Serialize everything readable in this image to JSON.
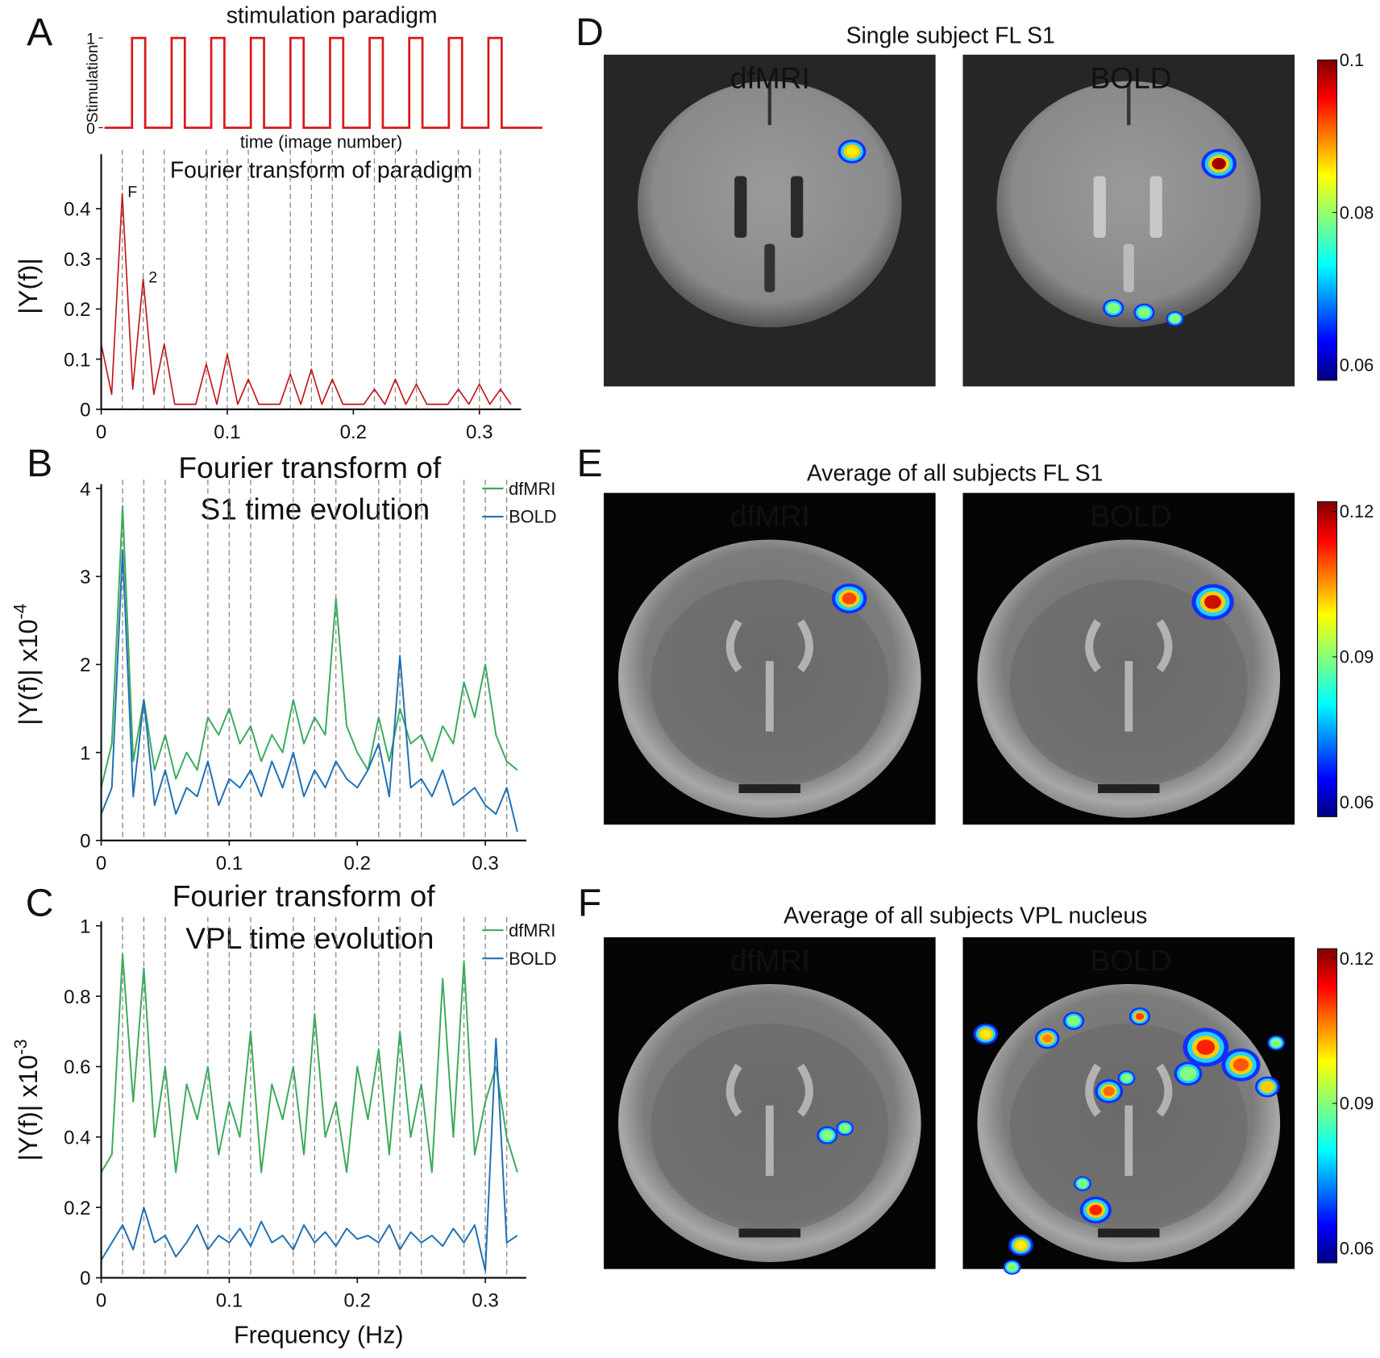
{
  "chart_data": [
    {
      "type": "step",
      "panel": "A",
      "title": "stimulation paradigm",
      "xlabel": "time (image number)",
      "ylabel": "Stimulation",
      "values": [
        0,
        0,
        1,
        0,
        0,
        1,
        0,
        0,
        1,
        0,
        0,
        1,
        0,
        0,
        1,
        0,
        0,
        1,
        0,
        0,
        1,
        0,
        0,
        1,
        0,
        0,
        1,
        0,
        0,
        1,
        0,
        0,
        0
      ],
      "color": "#d7191c",
      "ylim": [
        0,
        1
      ],
      "yticks": [
        0,
        1
      ]
    },
    {
      "type": "line",
      "title": "Fourier transform of paradigm",
      "ylabel": "|Y(f)|",
      "x": [
        0,
        0.0083,
        0.0167,
        0.025,
        0.0333,
        0.0417,
        0.05,
        0.0583,
        0.0667,
        0.075,
        0.0833,
        0.0917,
        0.1,
        0.1083,
        0.1167,
        0.125,
        0.1333,
        0.1417,
        0.15,
        0.1583,
        0.1667,
        0.175,
        0.1833,
        0.1917,
        0.2,
        0.2083,
        0.2167,
        0.225,
        0.2333,
        0.2417,
        0.25,
        0.2583,
        0.2667,
        0.275,
        0.2833,
        0.2917,
        0.3,
        0.3083,
        0.3167,
        0.325
      ],
      "values": [
        0.13,
        0.03,
        0.43,
        0.04,
        0.26,
        0.03,
        0.13,
        0.01,
        0.01,
        0.01,
        0.09,
        0.01,
        0.11,
        0.01,
        0.06,
        0.01,
        0.01,
        0.01,
        0.07,
        0.01,
        0.08,
        0.01,
        0.06,
        0.01,
        0.01,
        0.01,
        0.04,
        0.01,
        0.06,
        0.01,
        0.05,
        0.01,
        0.01,
        0.01,
        0.04,
        0.01,
        0.05,
        0.01,
        0.04,
        0.01
      ],
      "color": "#c0141a",
      "xlim": [
        0,
        0.333
      ],
      "ylim": [
        0,
        0.5
      ],
      "xticks": [
        0,
        0.1,
        0.2,
        0.3
      ],
      "yticks": [
        0,
        0.1,
        0.2,
        0.3,
        0.4
      ],
      "vlines": [
        0.0167,
        0.0333,
        0.05,
        0.0833,
        0.1,
        0.1167,
        0.15,
        0.1667,
        0.1833,
        0.2167,
        0.2333,
        0.25,
        0.2833,
        0.3,
        0.3167
      ],
      "annotations": [
        {
          "text": "F",
          "x": 0.0167,
          "y": 0.43
        },
        {
          "text": "2",
          "x": 0.0333,
          "y": 0.26
        }
      ]
    },
    {
      "type": "line",
      "panel": "B",
      "title": [
        "Fourier transform of",
        "S1 time evolution"
      ],
      "ylabel": "|Y(f)| x10",
      "ylabel_exponent": "-4",
      "x": [
        0,
        0.0083,
        0.0167,
        0.025,
        0.0333,
        0.0417,
        0.05,
        0.0583,
        0.0667,
        0.075,
        0.0833,
        0.0917,
        0.1,
        0.1083,
        0.1167,
        0.125,
        0.1333,
        0.1417,
        0.15,
        0.1583,
        0.1667,
        0.175,
        0.1833,
        0.1917,
        0.2,
        0.2083,
        0.2167,
        0.225,
        0.2333,
        0.2417,
        0.25,
        0.2583,
        0.2667,
        0.275,
        0.2833,
        0.2917,
        0.3,
        0.3083,
        0.3167,
        0.325
      ],
      "series": [
        {
          "name": "dfMRI",
          "color": "#3aaa5c",
          "values": [
            0.6,
            1.1,
            3.8,
            0.9,
            1.6,
            0.8,
            1.2,
            0.7,
            1.0,
            0.8,
            1.4,
            1.2,
            1.5,
            1.1,
            1.3,
            0.9,
            1.2,
            1.0,
            1.6,
            1.1,
            1.4,
            1.2,
            2.75,
            1.3,
            1.0,
            0.8,
            1.4,
            0.9,
            1.5,
            1.1,
            1.2,
            0.9,
            1.3,
            1.1,
            1.8,
            1.4,
            2.0,
            1.2,
            0.9,
            0.8
          ]
        },
        {
          "name": "BOLD",
          "color": "#1f6fb4",
          "values": [
            0.3,
            0.6,
            3.3,
            0.5,
            1.6,
            0.4,
            0.8,
            0.3,
            0.6,
            0.5,
            0.9,
            0.4,
            0.7,
            0.6,
            0.8,
            0.5,
            0.9,
            0.6,
            1.0,
            0.5,
            0.8,
            0.6,
            0.9,
            0.7,
            0.6,
            0.8,
            1.1,
            0.5,
            2.1,
            0.6,
            0.7,
            0.5,
            0.8,
            0.4,
            0.5,
            0.6,
            0.4,
            0.3,
            0.6,
            0.1
          ]
        }
      ],
      "xlim": [
        0,
        0.332
      ],
      "ylim": [
        0,
        4
      ],
      "xticks": [
        0,
        0.1,
        0.2,
        0.3
      ],
      "yticks": [
        0,
        1,
        2,
        3,
        4
      ],
      "vlines": [
        0.0167,
        0.0333,
        0.05,
        0.0833,
        0.1,
        0.1167,
        0.15,
        0.1667,
        0.1833,
        0.2167,
        0.2333,
        0.25,
        0.2833,
        0.3,
        0.3167
      ]
    },
    {
      "type": "line",
      "panel": "C",
      "title": [
        "Fourier transform of",
        "VPL time evolution"
      ],
      "xlabel": "Frequency (Hz)",
      "ylabel": "|Y(f)| x10",
      "ylabel_exponent": "-3",
      "x": [
        0,
        0.0083,
        0.0167,
        0.025,
        0.0333,
        0.0417,
        0.05,
        0.0583,
        0.0667,
        0.075,
        0.0833,
        0.0917,
        0.1,
        0.1083,
        0.1167,
        0.125,
        0.1333,
        0.1417,
        0.15,
        0.1583,
        0.1667,
        0.175,
        0.1833,
        0.1917,
        0.2,
        0.2083,
        0.2167,
        0.225,
        0.2333,
        0.2417,
        0.25,
        0.2583,
        0.2667,
        0.275,
        0.2833,
        0.2917,
        0.3,
        0.3083,
        0.3167,
        0.325
      ],
      "series": [
        {
          "name": "dfMRI",
          "color": "#3aaa5c",
          "values": [
            0.3,
            0.35,
            0.92,
            0.5,
            0.88,
            0.4,
            0.6,
            0.3,
            0.55,
            0.45,
            0.6,
            0.35,
            0.5,
            0.4,
            0.7,
            0.3,
            0.55,
            0.45,
            0.6,
            0.35,
            0.75,
            0.4,
            0.5,
            0.3,
            0.6,
            0.45,
            0.65,
            0.35,
            0.7,
            0.4,
            0.55,
            0.3,
            0.85,
            0.4,
            0.9,
            0.35,
            0.5,
            0.6,
            0.4,
            0.3
          ]
        },
        {
          "name": "BOLD",
          "color": "#1f6fb4",
          "values": [
            0.05,
            0.1,
            0.15,
            0.08,
            0.2,
            0.1,
            0.12,
            0.06,
            0.1,
            0.15,
            0.08,
            0.12,
            0.1,
            0.14,
            0.09,
            0.16,
            0.1,
            0.12,
            0.08,
            0.15,
            0.1,
            0.13,
            0.09,
            0.14,
            0.11,
            0.12,
            0.1,
            0.15,
            0.08,
            0.13,
            0.1,
            0.12,
            0.09,
            0.14,
            0.1,
            0.15,
            0.02,
            0.68,
            0.1,
            0.12
          ]
        }
      ],
      "xlim": [
        0,
        0.332
      ],
      "ylim": [
        0,
        1
      ],
      "xticks": [
        0,
        0.1,
        0.2,
        0.3
      ],
      "yticks": [
        0,
        0.2,
        0.4,
        0.6,
        0.8,
        1
      ],
      "vlines": [
        0.0167,
        0.0333,
        0.05,
        0.0833,
        0.1,
        0.1167,
        0.15,
        0.1667,
        0.1833,
        0.2167,
        0.2333,
        0.25,
        0.2833,
        0.3,
        0.3167
      ]
    }
  ],
  "image_panels": [
    {
      "panel": "D",
      "title": "Single subject FL S1",
      "labels": [
        {
          "text": "dfMRI",
          "color": "#2b9a48"
        },
        {
          "text": "BOLD",
          "color": "#3aa5dc"
        }
      ],
      "colorbar": {
        "lim": [
          0.058,
          0.1
        ],
        "ticks": [
          0.06,
          0.08,
          0.1
        ]
      }
    },
    {
      "panel": "E",
      "title": "Average of all subjects FL S1",
      "labels": [
        {
          "text": "dfMRI",
          "color": "#2b9a48"
        },
        {
          "text": "BOLD",
          "color": "#3aa5dc"
        }
      ],
      "colorbar": {
        "lim": [
          0.057,
          0.122
        ],
        "ticks": [
          0.06,
          0.09,
          0.12
        ]
      }
    },
    {
      "panel": "F",
      "title": "Average of all subjects VPL nucleus",
      "labels": [
        {
          "text": "dfMRI",
          "color": "#2b9a48"
        },
        {
          "text": "BOLD",
          "color": "#3aa5dc"
        }
      ],
      "colorbar": {
        "lim": [
          0.057,
          0.122
        ],
        "ticks": [
          0.06,
          0.09,
          0.12
        ]
      }
    }
  ]
}
